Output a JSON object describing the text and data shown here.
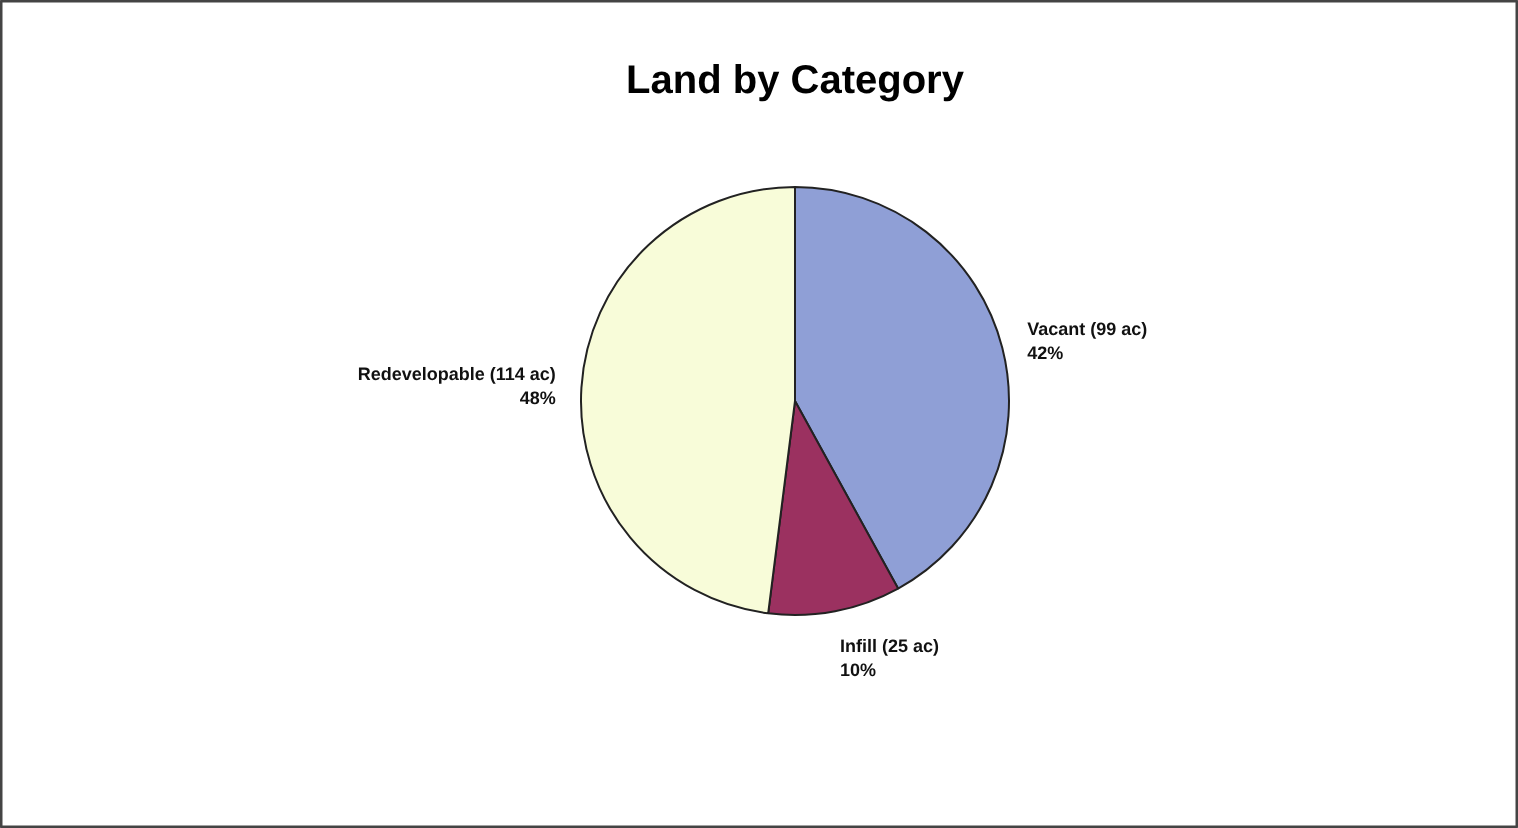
{
  "chart_data": {
    "type": "pie",
    "title": "Land by Category",
    "categories": [
      "Vacant (99 ac)",
      "Infill (25 ac)",
      "Redevelopable (114 ac)"
    ],
    "values": [
      42,
      10,
      48
    ],
    "value_labels": [
      "42%",
      "10%",
      "48%"
    ],
    "colors": [
      "#8f9fd6",
      "#9b3160",
      "#f8fcd9"
    ]
  }
}
